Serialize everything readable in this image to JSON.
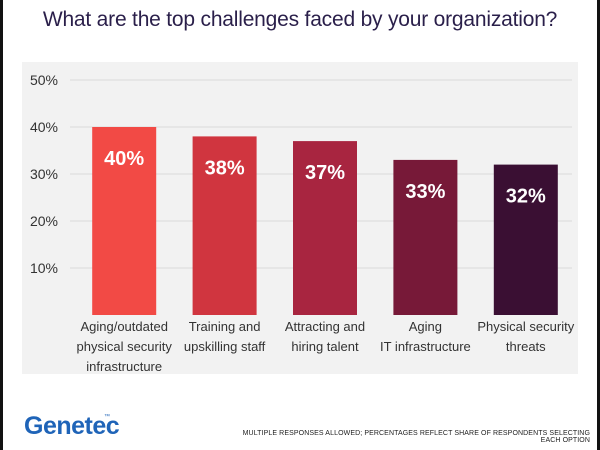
{
  "chart_data": {
    "type": "bar",
    "title": "What are the top challenges faced by your organization?",
    "categories": [
      [
        "Aging/outdated",
        "physical security",
        "infrastructure"
      ],
      [
        "Training and",
        "upskilling staff"
      ],
      [
        "Attracting and",
        "hiring talent"
      ],
      [
        "Aging",
        "IT infrastructure"
      ],
      [
        "Physical security",
        "threats"
      ]
    ],
    "values": [
      40,
      38,
      37,
      33,
      32
    ],
    "value_labels": [
      "40%",
      "38%",
      "37%",
      "33%",
      "32%"
    ],
    "ylim": [
      0,
      50
    ],
    "yticks": [
      10,
      20,
      30,
      40,
      50
    ],
    "ytick_labels": [
      "10%",
      "20%",
      "30%",
      "40%",
      "50%"
    ],
    "bar_colors": [
      "#f24a45",
      "#d0353f",
      "#a82540",
      "#771938",
      "#3a0f33"
    ],
    "grid": true
  },
  "brand": {
    "logo": "Genetec",
    "trademark": "™",
    "logo_color": "#1f64b8"
  },
  "footnote": "MULTIPLE RESPONSES ALLOWED; PERCENTAGES REFLECT SHARE OF RESPONDENTS SELECTING EACH OPTION"
}
